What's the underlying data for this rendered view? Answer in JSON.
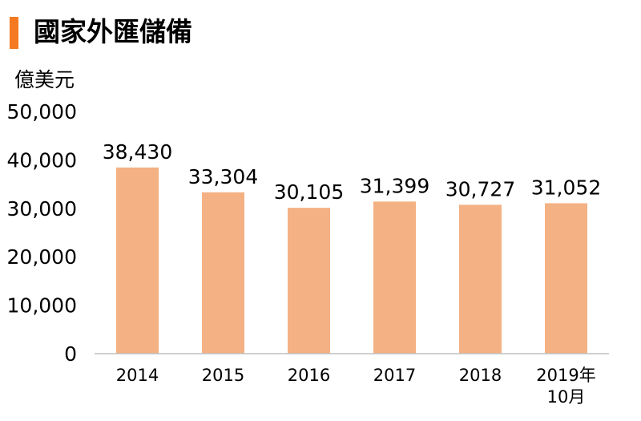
{
  "title": "國家外匯儲備",
  "colors": {
    "accent": "#f47920",
    "bar": "#f4b183",
    "axis": "#bfbfbf"
  },
  "chart_data": {
    "type": "bar",
    "title": "國家外匯儲備",
    "ylabel": "億美元",
    "xlabel": "",
    "categories": [
      "2014",
      "2015",
      "2016",
      "2017",
      "2018",
      "2019年 10月"
    ],
    "category_lines": [
      [
        "2014"
      ],
      [
        "2015"
      ],
      [
        "2016"
      ],
      [
        "2017"
      ],
      [
        "2018"
      ],
      [
        "2019年",
        "10月"
      ]
    ],
    "values": [
      38430,
      33304,
      30105,
      31399,
      30727,
      31052
    ],
    "value_labels": [
      "38,430",
      "33,304",
      "30,105",
      "31,399",
      "30,727",
      "31,052"
    ],
    "yticks": [
      0,
      10000,
      20000,
      30000,
      40000,
      50000
    ],
    "ytick_labels": [
      "0",
      "10,000",
      "20,000",
      "30,000",
      "40,000",
      "50,000"
    ],
    "ylim": [
      0,
      50000
    ],
    "grid": false,
    "legend": "none"
  }
}
